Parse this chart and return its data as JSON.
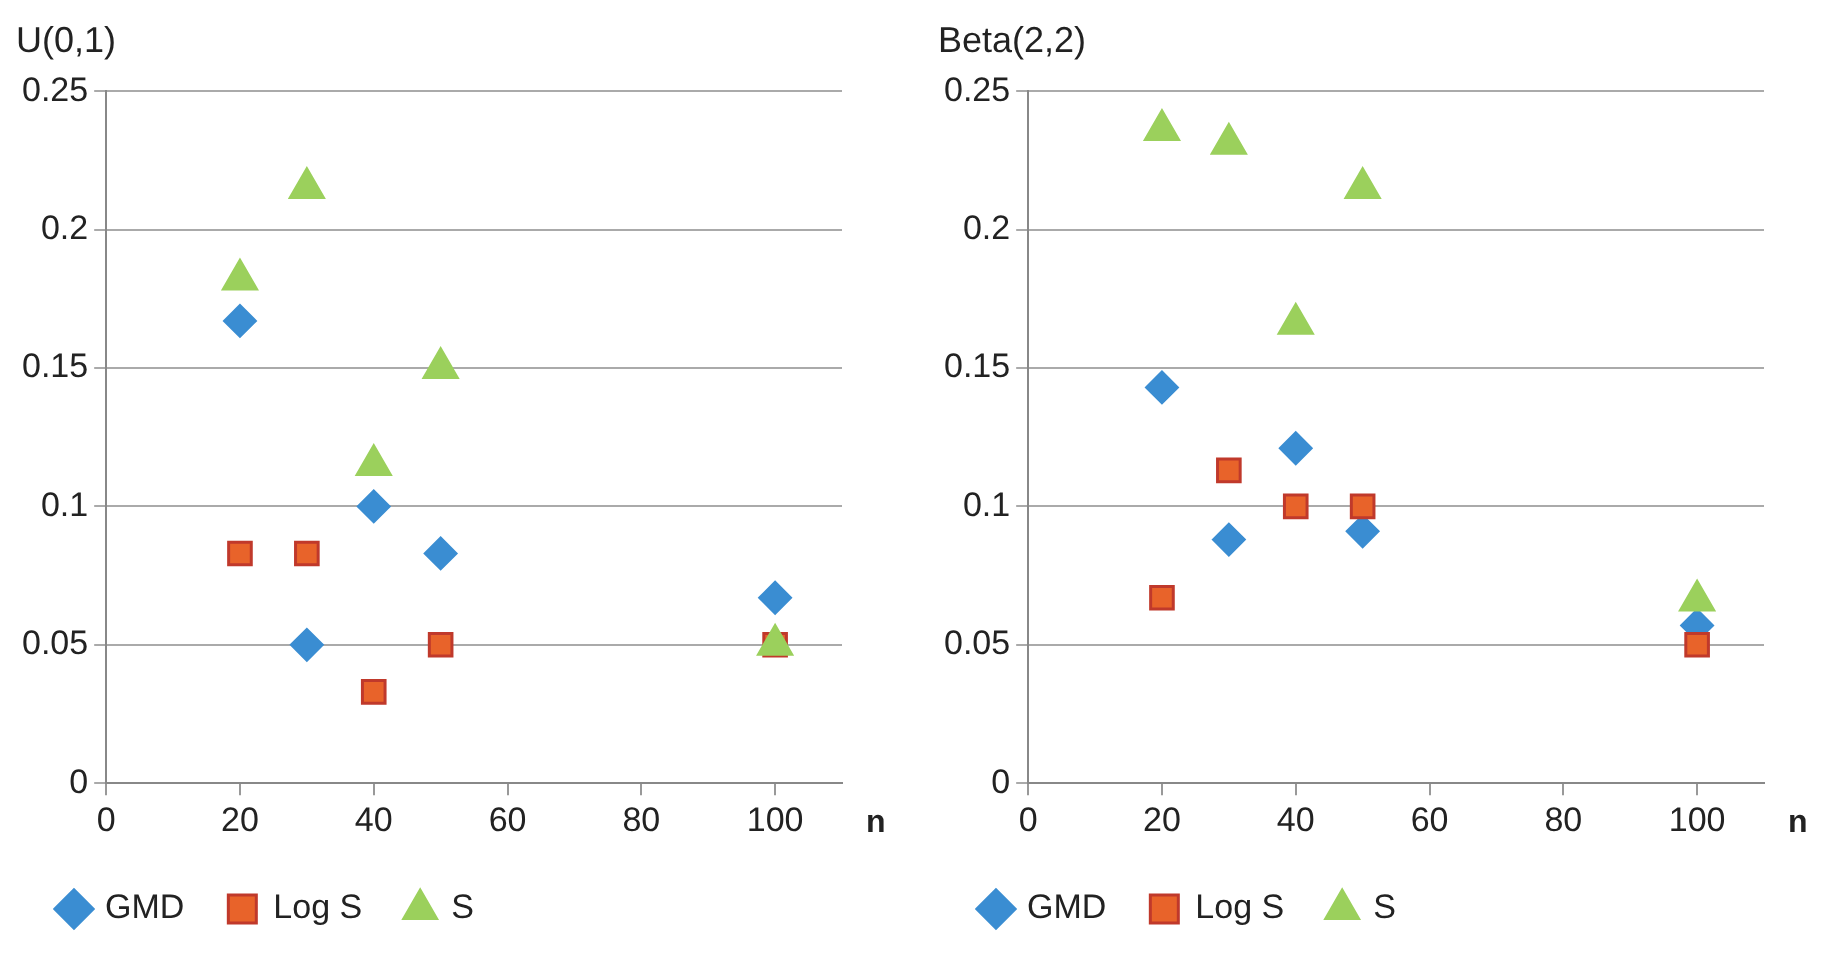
{
  "chart_data": [
    {
      "type": "scatter",
      "title": "U(0,1)",
      "xlabel": "n",
      "xlim": [
        0,
        110
      ],
      "xticks": [
        0,
        20,
        40,
        60,
        80,
        100
      ],
      "ylim": [
        0,
        0.25
      ],
      "yticks": [
        0,
        0.05,
        0.1,
        0.15,
        0.2,
        0.25
      ],
      "grid": "y",
      "legend": "bottom",
      "series": [
        {
          "name": "GMD",
          "color": "#3a8dd2",
          "marker": "diamond",
          "x": [
            20,
            30,
            40,
            50,
            100
          ],
          "values": [
            0.167,
            0.05,
            0.1,
            0.083,
            0.067
          ]
        },
        {
          "name": "Log S",
          "color": "#e8632a",
          "marker": "square",
          "x": [
            20,
            30,
            40,
            50,
            100
          ],
          "values": [
            0.083,
            0.083,
            0.033,
            0.05,
            0.05
          ]
        },
        {
          "name": "S",
          "color": "#9bd05c",
          "marker": "triangle",
          "x": [
            20,
            30,
            40,
            50,
            100
          ],
          "values": [
            0.182,
            0.215,
            0.115,
            0.15,
            0.05
          ]
        }
      ]
    },
    {
      "type": "scatter",
      "title": "Beta(2,2)",
      "xlabel": "n",
      "xlim": [
        0,
        110
      ],
      "xticks": [
        0,
        20,
        40,
        60,
        80,
        100
      ],
      "ylim": [
        0,
        0.25
      ],
      "yticks": [
        0,
        0.05,
        0.1,
        0.15,
        0.2,
        0.25
      ],
      "grid": "y",
      "legend": "bottom",
      "series": [
        {
          "name": "GMD",
          "color": "#3a8dd2",
          "marker": "diamond",
          "x": [
            20,
            30,
            40,
            50,
            100
          ],
          "values": [
            0.143,
            0.088,
            0.121,
            0.091,
            0.057
          ]
        },
        {
          "name": "Log S",
          "color": "#e8632a",
          "marker": "square",
          "x": [
            20,
            30,
            40,
            50,
            100
          ],
          "values": [
            0.067,
            0.113,
            0.1,
            0.1,
            0.05
          ]
        },
        {
          "name": "S",
          "color": "#9bd05c",
          "marker": "triangle",
          "x": [
            20,
            30,
            40,
            50,
            100
          ],
          "values": [
            0.236,
            0.231,
            0.166,
            0.215,
            0.066
          ]
        }
      ]
    }
  ]
}
